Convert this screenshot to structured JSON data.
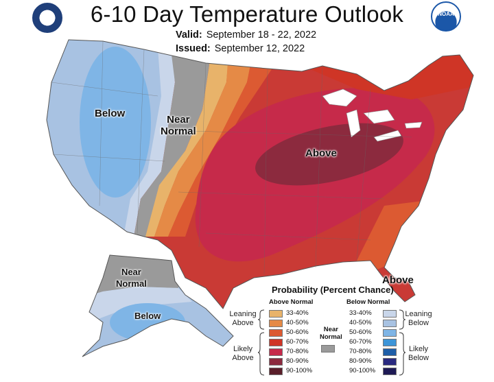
{
  "title": "6-10 Day Temperature Outlook",
  "valid_label": "Valid:",
  "valid_dates": "September 18 - 22, 2022",
  "issued_label": "Issued:",
  "issued_date": "September 12, 2022",
  "logos": {
    "left_seal": "department-of-commerce-seal-icon",
    "right_seal": "noaa-logo-icon",
    "noaa_text": "NOAA"
  },
  "map_labels": {
    "west_below": "Below",
    "near_normal": "Near\nNormal",
    "central_above": "Above",
    "florida_above": "Above",
    "alaska_near_normal": "Near\nNormal",
    "alaska_below": "Below"
  },
  "legend": {
    "title": "Probability (Percent Chance)",
    "above_header": "Above Normal",
    "below_header": "Below Normal",
    "near_normal_label": "Near\nNormal",
    "leaning_above": "Leaning\nAbove",
    "likely_above": "Likely\nAbove",
    "leaning_below": "Leaning\nBelow",
    "likely_below": "Likely\nBelow",
    "above_bins": [
      "33-40%",
      "40-50%",
      "50-60%",
      "60-70%",
      "70-80%",
      "80-90%",
      "90-100%"
    ],
    "below_bins": [
      "33-40%",
      "40-50%",
      "50-60%",
      "60-70%",
      "70-80%",
      "80-90%",
      "90-100%"
    ],
    "above_colors": [
      "#e8b36a",
      "#e58a46",
      "#dc5a32",
      "#cf3526",
      "#c62a4a",
      "#8c2a3e",
      "#5a1e2a"
    ],
    "below_colors": [
      "#c9d6ea",
      "#a8c2e2",
      "#7fb5e6",
      "#3d95d8",
      "#1f5fa8",
      "#2a2a80",
      "#1e1a55"
    ],
    "near_color": "#9a9a9a"
  }
}
